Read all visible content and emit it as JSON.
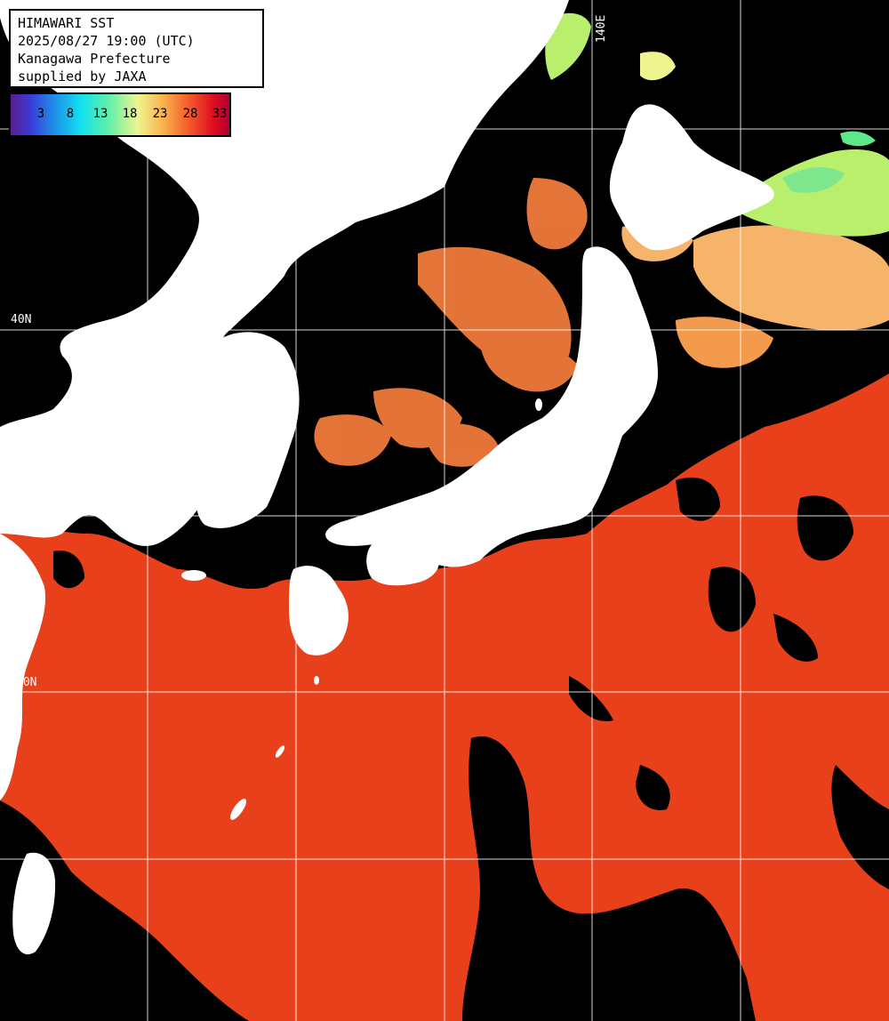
{
  "header": {
    "title": "HIMAWARI SST",
    "datetime": "2025/08/27 19:00 (UTC)",
    "region": "Kanagawa Prefecture",
    "credit": "supplied by JAXA"
  },
  "colorbar": {
    "labels": [
      "3",
      "8",
      "13",
      "18",
      "23",
      "28",
      "33"
    ]
  },
  "gridlabels": {
    "lon_140e": "140E",
    "lat_40n": "40N",
    "lat_30n": "30N"
  },
  "colors": {
    "land": "#ffffff",
    "cloud": "#000000",
    "sst_warm": "#e83a14",
    "sst_mid": "#f39a4c",
    "sst_cool": "#c8ef6a",
    "sst_cold": "#5ee88a",
    "grid": "#ffffff"
  }
}
